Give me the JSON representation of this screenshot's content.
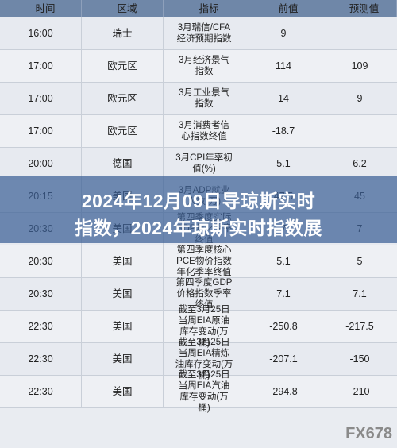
{
  "header": {
    "time": "时间",
    "region": "区域",
    "indicator": "指标",
    "previous": "前值",
    "forecast": "预测值"
  },
  "rows": [
    {
      "time": "16:00",
      "region": "瑞士",
      "indicator": "3月瑞信/CFA经济预期指数",
      "previous": "9",
      "forecast": ""
    },
    {
      "time": "17:00",
      "region": "欧元区",
      "indicator": "3月经济景气指数",
      "previous": "114",
      "forecast": "109"
    },
    {
      "time": "17:00",
      "region": "欧元区",
      "indicator": "3月工业景气指数",
      "previous": "14",
      "forecast": "9"
    },
    {
      "time": "17:00",
      "region": "欧元区",
      "indicator": "3月消费者信心指数终值",
      "previous": "-18.7",
      "forecast": ""
    },
    {
      "time": "20:00",
      "region": "德国",
      "indicator": "3月CPI年率初值(%)",
      "previous": "5.1",
      "forecast": "6.2"
    },
    {
      "time": "20:15",
      "region": "美国",
      "indicator": "3月ADP就业人数(万)",
      "previous": "47.5",
      "forecast": "45"
    },
    {
      "time": "20:30",
      "region": "美国",
      "indicator": "第四季度实际GDP年化季率终值",
      "previous": "7",
      "forecast": "7"
    },
    {
      "time": "20:30",
      "region": "美国",
      "indicator": "第四季度核心PCE物价指数年化季率终值",
      "previous": "5.1",
      "forecast": "5"
    },
    {
      "time": "20:30",
      "region": "美国",
      "indicator": "第四季度GDP价格指数季率终值",
      "previous": "7.1",
      "forecast": "7.1"
    },
    {
      "time": "22:30",
      "region": "美国",
      "indicator": "截至3月25日当周EIA原油库存变动(万桶)",
      "previous": "-250.8",
      "forecast": "-217.5"
    },
    {
      "time": "22:30",
      "region": "美国",
      "indicator": "截至3月25日当周EIA精炼油库存变动(万桶)",
      "previous": "-207.1",
      "forecast": "-150"
    },
    {
      "time": "22:30",
      "region": "美国",
      "indicator": "截至3月25日当周EIA汽油库存变动(万桶)",
      "previous": "-294.8",
      "forecast": "-210"
    }
  ],
  "overlay": {
    "line1": "2024年12月09日导琼斯实时",
    "line2": "指数，2024年琼斯实时指数展"
  },
  "watermark": "FX678"
}
